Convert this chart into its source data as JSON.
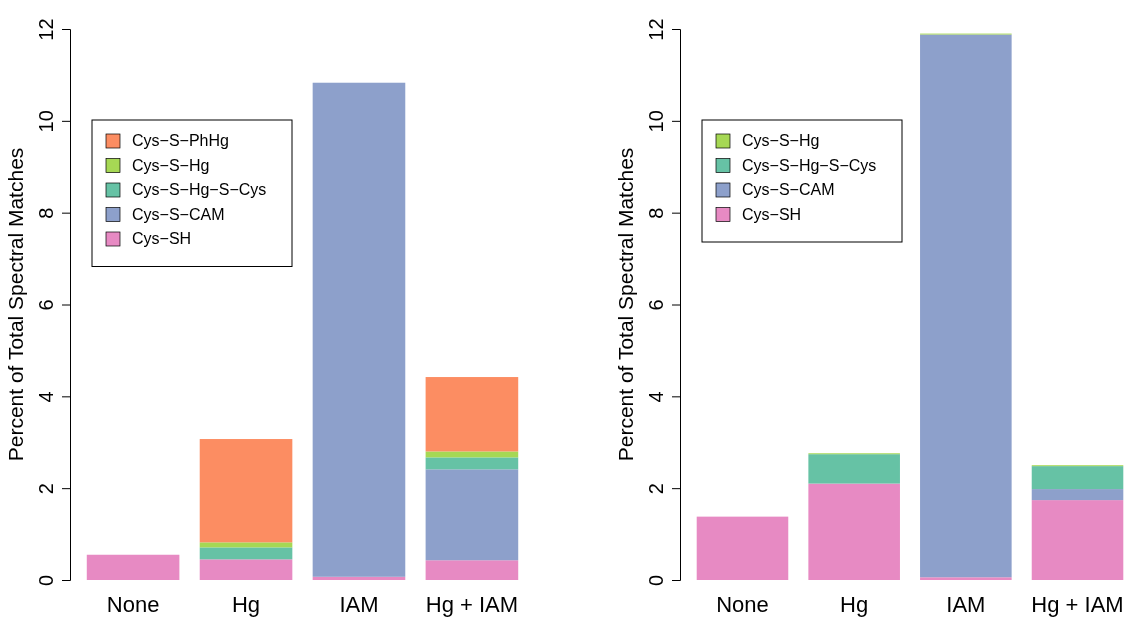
{
  "chart_data": [
    {
      "type": "bar",
      "stacked": true,
      "categories": [
        "None",
        "Hg",
        "IAM",
        "Hg + IAM"
      ],
      "ylabel": "Percent of Total Spectral Matches",
      "ylim": [
        0,
        12
      ],
      "yticks": [
        0,
        2,
        4,
        6,
        8,
        10,
        12
      ],
      "legend": "top left",
      "grid": false,
      "series": [
        {
          "name": "Cys−SH",
          "color": "#e78ac3",
          "values": [
            0.55,
            0.45,
            0.07,
            0.43
          ]
        },
        {
          "name": "Cys−S−CAM",
          "color": "#8da0cb",
          "values": [
            0,
            0,
            10.76,
            1.98
          ]
        },
        {
          "name": "Cys−S−Hg−S−Cys",
          "color": "#66c2a5",
          "values": [
            0,
            0.26,
            0,
            0.26
          ]
        },
        {
          "name": "Cys−S−Hg",
          "color": "#a6d854",
          "values": [
            0,
            0.11,
            0,
            0.13
          ]
        },
        {
          "name": "Cys−S−PhHg",
          "color": "#fc8d62",
          "values": [
            0,
            2.25,
            0,
            1.62
          ]
        }
      ]
    },
    {
      "type": "bar",
      "stacked": true,
      "categories": [
        "None",
        "Hg",
        "IAM",
        "Hg + IAM"
      ],
      "ylabel": "Percent of Total Spectral Matches",
      "ylim": [
        0,
        12
      ],
      "yticks": [
        0,
        2,
        4,
        6,
        8,
        10,
        12
      ],
      "legend": "top left",
      "grid": false,
      "series": [
        {
          "name": "Cys−SH",
          "color": "#e78ac3",
          "values": [
            1.38,
            2.1,
            0.06,
            1.74
          ]
        },
        {
          "name": "Cys−S−CAM",
          "color": "#8da0cb",
          "values": [
            0,
            0,
            11.82,
            0.24
          ]
        },
        {
          "name": "Cys−S−Hg−S−Cys",
          "color": "#66c2a5",
          "values": [
            0,
            0.64,
            0,
            0.5
          ]
        },
        {
          "name": "Cys−S−Hg",
          "color": "#a6d854",
          "values": [
            0,
            0.02,
            0.02,
            0.02
          ]
        }
      ]
    }
  ]
}
